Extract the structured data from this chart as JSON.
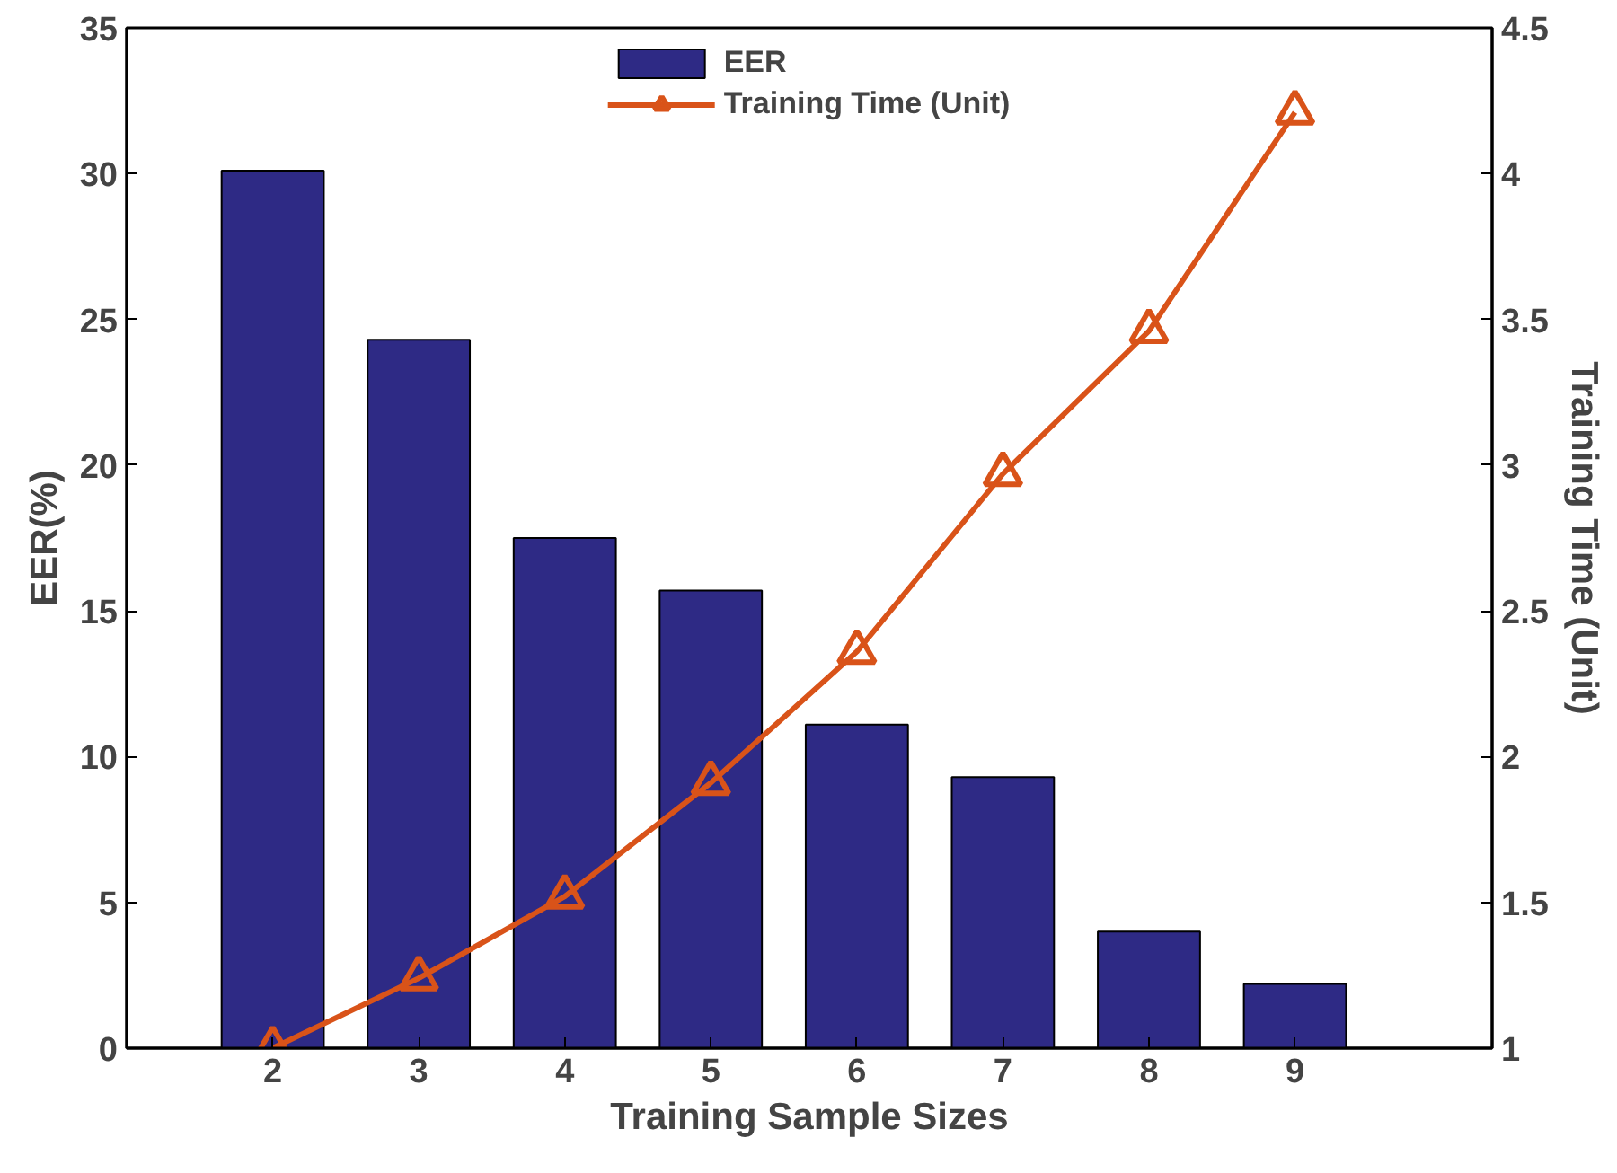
{
  "chart_data": {
    "type": "bar",
    "xlabel": "Training Sample Sizes",
    "ylabel": "EER(%)",
    "y2label": "Training Time (Unit)",
    "categories": [
      "2",
      "3",
      "4",
      "5",
      "6",
      "7",
      "8",
      "9"
    ],
    "series": [
      {
        "name": "EER",
        "color": "#2e2a85",
        "values": [
          30.1,
          24.3,
          17.5,
          15.7,
          11.1,
          9.3,
          4.0,
          2.2
        ]
      },
      {
        "name": "Training Time (Unit)",
        "type": "line",
        "axis": "y2",
        "color": "#d95319",
        "marker": "triangle",
        "line_style": "solid",
        "values": [
          1.0,
          1.24,
          1.52,
          1.91,
          2.36,
          2.97,
          3.46,
          4.21
        ]
      }
    ],
    "ylim": [
      0,
      35
    ],
    "yticks": [
      0,
      5,
      10,
      15,
      20,
      25,
      30,
      35
    ],
    "y2lim": [
      1,
      4.5
    ],
    "y2ticks": [
      1,
      {
        "value": 1.5,
        "label": "1.5"
      },
      2,
      {
        "value": 2.5,
        "label": "2.5"
      },
      3,
      {
        "value": 3.5,
        "label": "3.5"
      },
      4,
      {
        "value": 4.5,
        "label": "4.5"
      }
    ],
    "grid": false,
    "legend": "top"
  }
}
